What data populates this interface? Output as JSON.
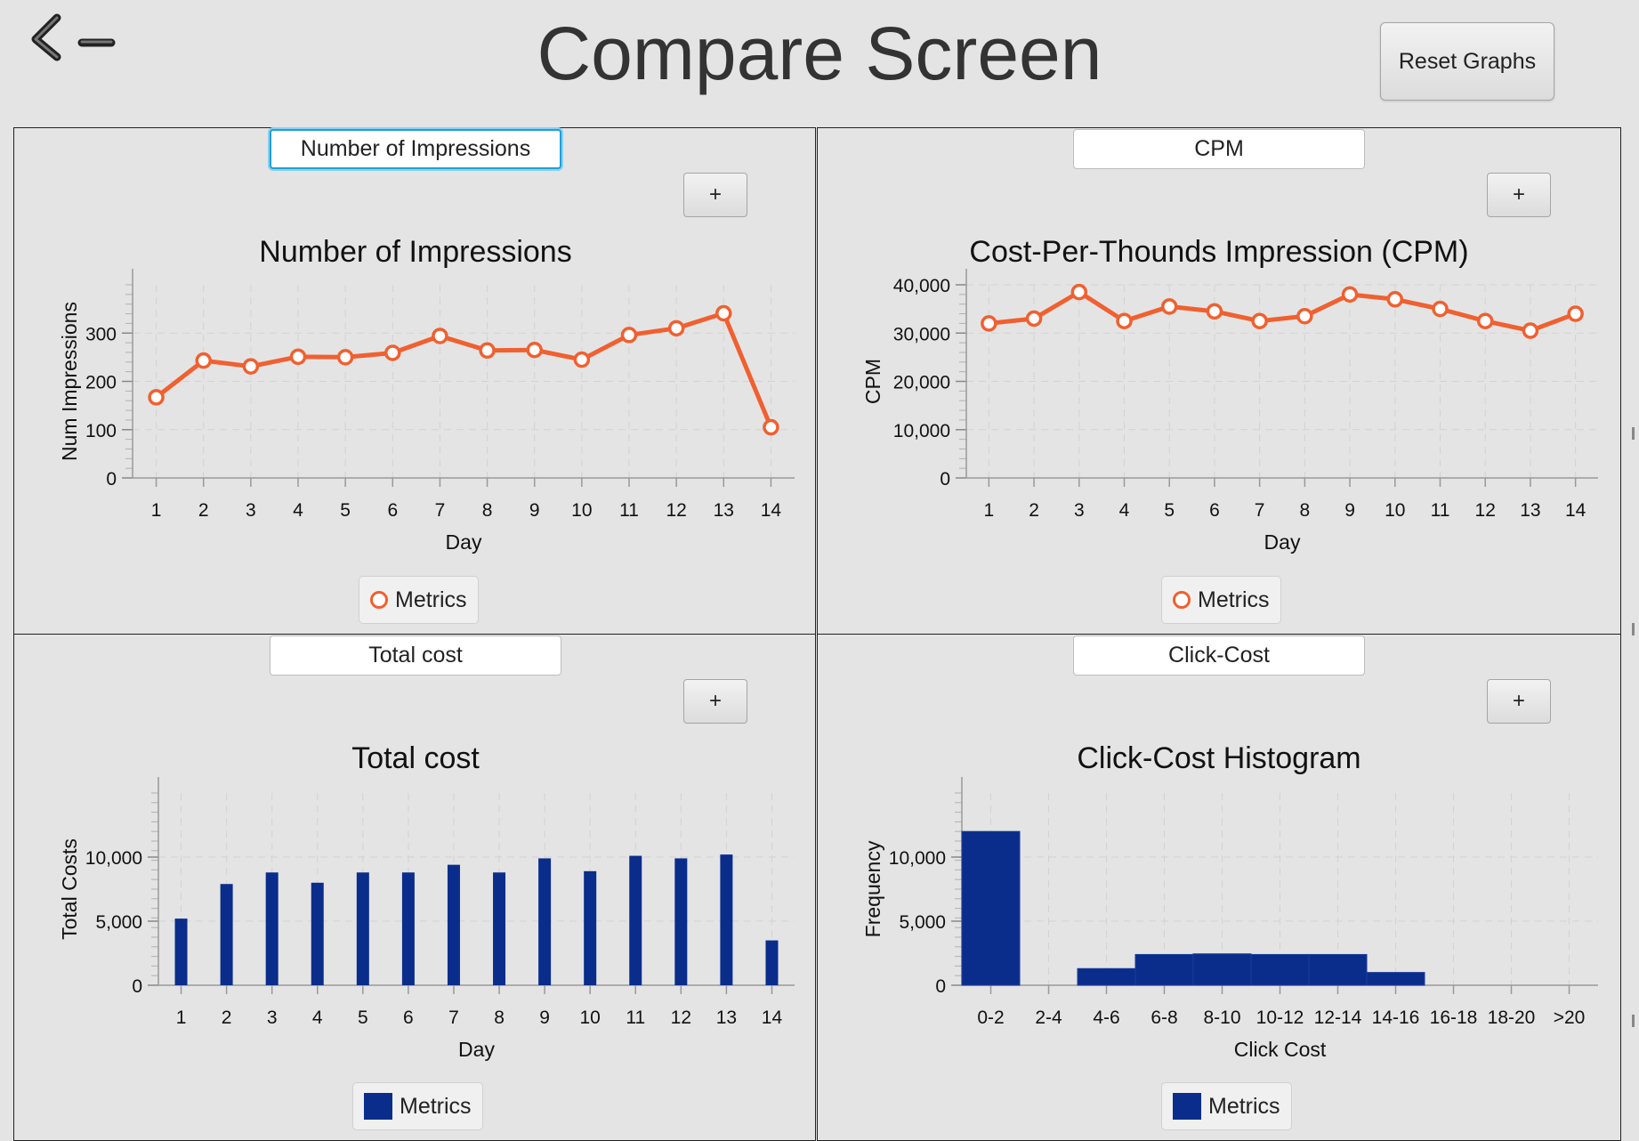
{
  "header": {
    "title": "Compare Screen",
    "back_icon": "back-arrow-icon",
    "reset_label": "Reset Graphs"
  },
  "panels": [
    {
      "field_value": "Number of Impressions",
      "add_label": "+",
      "legend_label": "Metrics",
      "legend_symbol": "circle"
    },
    {
      "field_value": "CPM",
      "add_label": "+",
      "legend_label": "Metrics",
      "legend_symbol": "circle"
    },
    {
      "field_value": "Total cost",
      "add_label": "+",
      "legend_label": "Metrics",
      "legend_symbol": "square"
    },
    {
      "field_value": "Click-Cost",
      "add_label": "+",
      "legend_label": "Metrics",
      "legend_symbol": "square"
    }
  ],
  "colors": {
    "line": "#f06030",
    "bar": "#0a2d8c",
    "background": "#e4e4e4",
    "focus": "#1ea0d8"
  },
  "chart_data": [
    {
      "type": "line",
      "title": "Number of Impressions",
      "xlabel": "Day",
      "ylabel": "Num Impressions",
      "categories": [
        "1",
        "2",
        "3",
        "4",
        "5",
        "6",
        "7",
        "8",
        "9",
        "10",
        "11",
        "12",
        "13",
        "14"
      ],
      "values": [
        167,
        243,
        231,
        251,
        250,
        259,
        294,
        264,
        265,
        245,
        296,
        310,
        341,
        105
      ],
      "ylim": [
        0,
        400
      ],
      "yticks": [
        0,
        100,
        200,
        300
      ],
      "ytick_labels": [
        "0",
        "100",
        "200",
        "300"
      ],
      "grid": true,
      "legend": "bottom-center"
    },
    {
      "type": "line",
      "title": "Cost-Per-Thounds Impression (CPM)",
      "xlabel": "Day",
      "ylabel": "CPM",
      "categories": [
        "1",
        "2",
        "3",
        "4",
        "5",
        "6",
        "7",
        "8",
        "9",
        "10",
        "11",
        "12",
        "13",
        "14"
      ],
      "values": [
        32000,
        33000,
        38500,
        32500,
        35500,
        34500,
        32500,
        33500,
        38000,
        37000,
        35000,
        32500,
        30500,
        34000
      ],
      "ylim": [
        0,
        40000
      ],
      "yticks": [
        0,
        10000,
        20000,
        30000,
        40000
      ],
      "ytick_labels": [
        "0",
        "10,000",
        "20,000",
        "30,000",
        "40,000"
      ],
      "grid": true,
      "legend": "bottom-center"
    },
    {
      "type": "bar",
      "title": "Total cost",
      "xlabel": "Day",
      "ylabel": "Total Costs",
      "categories": [
        "1",
        "2",
        "3",
        "4",
        "5",
        "6",
        "7",
        "8",
        "9",
        "10",
        "11",
        "12",
        "13",
        "14"
      ],
      "values": [
        5200,
        7900,
        8800,
        8000,
        8800,
        8800,
        9400,
        8800,
        9900,
        8900,
        10100,
        9900,
        10200,
        3500
      ],
      "ylim": [
        0,
        15000
      ],
      "yticks": [
        0,
        5000,
        10000
      ],
      "ytick_labels": [
        "0",
        "5,000",
        "10,000"
      ],
      "grid": true,
      "legend": "bottom-center"
    },
    {
      "type": "bar",
      "title": "Click-Cost Histogram",
      "xlabel": "Click Cost",
      "ylabel": "Frequency",
      "categories": [
        "0-2",
        "2-4",
        "4-6",
        "6-8",
        "8-10",
        "10-12",
        "12-14",
        "14-16",
        "16-18",
        "18-20",
        ">20"
      ],
      "values": [
        12000,
        0,
        1300,
        2400,
        2450,
        2400,
        2400,
        1000,
        0,
        0,
        0
      ],
      "ylim": [
        0,
        15000
      ],
      "yticks": [
        0,
        5000,
        10000
      ],
      "ytick_labels": [
        "0",
        "5,000",
        "10,000"
      ],
      "grid": true,
      "legend": "bottom-center"
    }
  ]
}
